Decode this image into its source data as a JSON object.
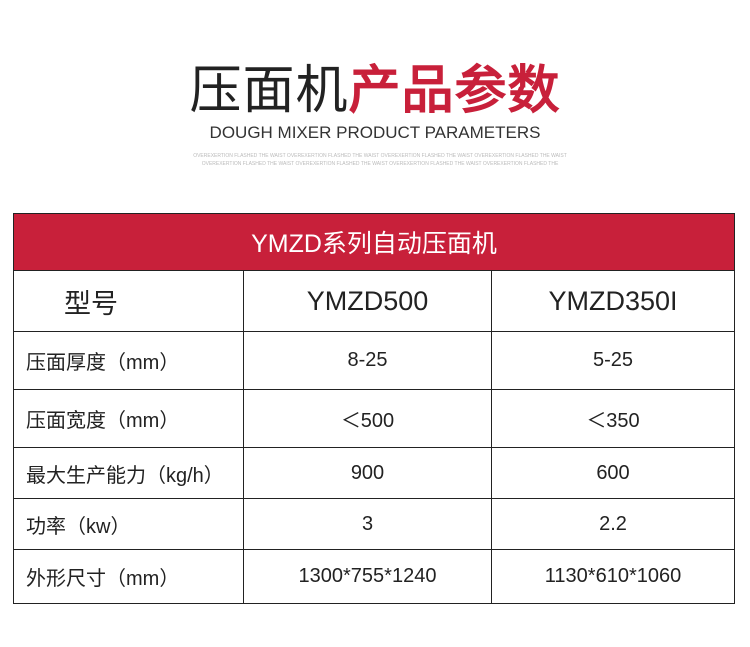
{
  "header": {
    "title_dark": "压面机",
    "title_red": "产品参数",
    "subtitle": "DOUGH MIXER PRODUCT PARAMETERS",
    "watermark": "OVEREXERTION FLASHED THE WAIST OVEREXERTION FLASHED THE WAIST OVEREXERTION FLASHED THE WAIST OVEREXERTION FLASHED THE WAIST OVEREXERTION FLASHED THE WAIST OVEREXERTION FLASHED THE WAIST OVEREXERTION FLASHED THE WAIST OVEREXERTION FLASHED THE"
  },
  "table": {
    "title": "YMZD系列自动压面机",
    "model_label": "型号",
    "models": [
      "YMZD500",
      "YMZD350I"
    ],
    "rows": [
      {
        "label": "压面厚度（mm）",
        "values": [
          "8-25",
          "5-25"
        ]
      },
      {
        "label": "压面宽度（mm）",
        "values": [
          "＜500",
          "＜350"
        ]
      },
      {
        "label": "最大生产能力（kg/h）",
        "values": [
          "900",
          "600"
        ]
      },
      {
        "label": "功率（kw）",
        "values": [
          "3",
          "2.2"
        ]
      },
      {
        "label": "外形尺寸（mm）",
        "values": [
          "1300*755*1240",
          "1130*610*1060"
        ]
      }
    ]
  },
  "colors": {
    "accent": "#c8203a"
  }
}
